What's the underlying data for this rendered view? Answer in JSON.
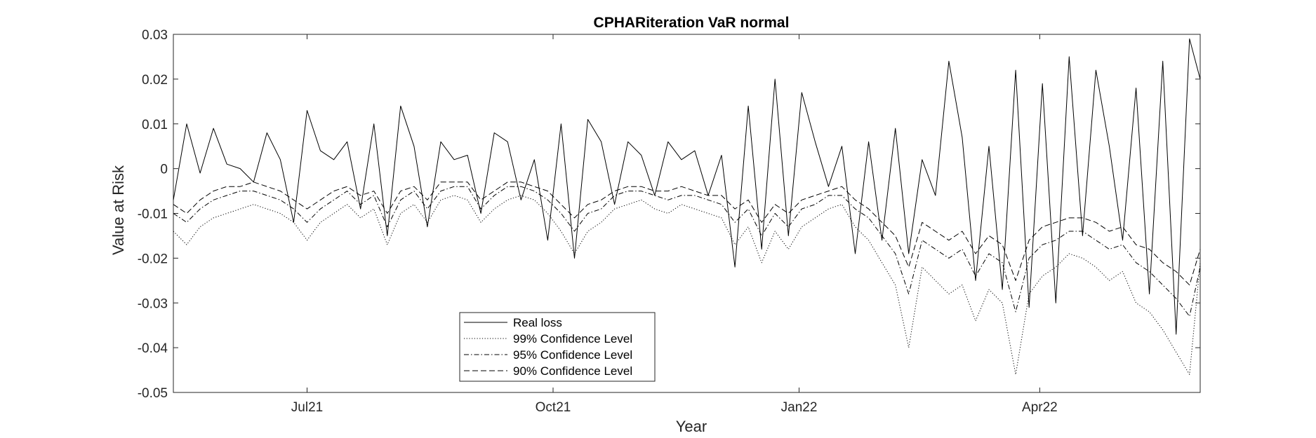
{
  "chart_data": {
    "type": "line",
    "title": "CPHARiteration VaR normal",
    "xlabel": "Year",
    "ylabel": "Value at Risk",
    "ylim": [
      -0.05,
      0.03
    ],
    "yticks": [
      -0.05,
      -0.04,
      -0.03,
      -0.02,
      -0.01,
      0,
      0.01,
      0.02,
      0.03
    ],
    "ytick_labels": [
      "-0.05",
      "-0.04",
      "-0.03",
      "-0.02",
      "-0.01",
      "0",
      "0.01",
      "0.02",
      "0.03"
    ],
    "xlim": [
      "2021-05-12",
      "2022-05-31"
    ],
    "xticks": [
      "2021-07-01",
      "2021-10-01",
      "2022-01-01",
      "2022-04-01"
    ],
    "xtick_labels": [
      "Jul21",
      "Oct21",
      "Jan22",
      "Apr22"
    ],
    "grid": false,
    "legend_position": "bottom-center",
    "x": [
      "2021-05-12",
      "2021-05-17",
      "2021-05-22",
      "2021-05-27",
      "2021-06-01",
      "2021-06-06",
      "2021-06-11",
      "2021-06-16",
      "2021-06-21",
      "2021-06-26",
      "2021-07-01",
      "2021-07-06",
      "2021-07-11",
      "2021-07-16",
      "2021-07-21",
      "2021-07-26",
      "2021-07-31",
      "2021-08-05",
      "2021-08-10",
      "2021-08-15",
      "2021-08-20",
      "2021-08-25",
      "2021-08-30",
      "2021-09-04",
      "2021-09-09",
      "2021-09-14",
      "2021-09-19",
      "2021-09-24",
      "2021-09-29",
      "2021-10-04",
      "2021-10-09",
      "2021-10-14",
      "2021-10-19",
      "2021-10-24",
      "2021-10-29",
      "2021-11-03",
      "2021-11-08",
      "2021-11-13",
      "2021-11-18",
      "2021-11-23",
      "2021-11-28",
      "2021-12-03",
      "2021-12-08",
      "2021-12-13",
      "2021-12-18",
      "2021-12-23",
      "2021-12-28",
      "2022-01-02",
      "2022-01-07",
      "2022-01-12",
      "2022-01-17",
      "2022-01-22",
      "2022-01-27",
      "2022-02-01",
      "2022-02-06",
      "2022-02-11",
      "2022-02-16",
      "2022-02-21",
      "2022-02-26",
      "2022-03-03",
      "2022-03-08",
      "2022-03-13",
      "2022-03-18",
      "2022-03-23",
      "2022-03-28",
      "2022-04-02",
      "2022-04-07",
      "2022-04-12",
      "2022-04-17",
      "2022-04-22",
      "2022-04-27",
      "2022-05-02",
      "2022-05-07",
      "2022-05-12",
      "2022-05-17",
      "2022-05-22",
      "2022-05-27",
      "2022-05-31"
    ],
    "series": [
      {
        "name": "Real loss",
        "style": "solid",
        "values": [
          -0.007,
          0.01,
          -0.001,
          0.009,
          0.001,
          0.0,
          -0.003,
          0.008,
          0.002,
          -0.012,
          0.013,
          0.004,
          0.002,
          0.006,
          -0.009,
          0.01,
          -0.015,
          0.014,
          0.005,
          -0.013,
          0.006,
          0.002,
          0.003,
          -0.01,
          0.008,
          0.006,
          -0.007,
          0.002,
          -0.016,
          0.01,
          -0.02,
          0.011,
          0.006,
          -0.008,
          0.006,
          0.003,
          -0.006,
          0.006,
          0.002,
          0.004,
          -0.006,
          0.003,
          -0.022,
          0.014,
          -0.018,
          0.02,
          -0.015,
          0.017,
          0.006,
          -0.004,
          0.005,
          -0.019,
          0.006,
          -0.016,
          0.009,
          -0.019,
          0.002,
          -0.006,
          0.024,
          0.007,
          -0.025,
          0.005,
          -0.027,
          0.022,
          -0.031,
          0.019,
          -0.03,
          0.025,
          -0.015,
          0.022,
          0.005,
          -0.016,
          0.018,
          -0.028,
          0.024,
          -0.037,
          0.029,
          0.02
        ]
      },
      {
        "name": "99% Confidence Level",
        "style": "dotted",
        "values": [
          -0.014,
          -0.017,
          -0.013,
          -0.011,
          -0.01,
          -0.009,
          -0.008,
          -0.009,
          -0.01,
          -0.012,
          -0.016,
          -0.012,
          -0.01,
          -0.008,
          -0.011,
          -0.009,
          -0.017,
          -0.01,
          -0.008,
          -0.012,
          -0.007,
          -0.006,
          -0.007,
          -0.012,
          -0.009,
          -0.007,
          -0.006,
          -0.007,
          -0.01,
          -0.014,
          -0.019,
          -0.014,
          -0.012,
          -0.009,
          -0.008,
          -0.007,
          -0.009,
          -0.01,
          -0.008,
          -0.009,
          -0.01,
          -0.011,
          -0.017,
          -0.013,
          -0.021,
          -0.014,
          -0.018,
          -0.013,
          -0.011,
          -0.009,
          -0.008,
          -0.013,
          -0.016,
          -0.021,
          -0.026,
          -0.04,
          -0.022,
          -0.025,
          -0.028,
          -0.026,
          -0.034,
          -0.027,
          -0.03,
          -0.046,
          -0.028,
          -0.024,
          -0.022,
          -0.019,
          -0.02,
          -0.022,
          -0.025,
          -0.023,
          -0.03,
          -0.032,
          -0.036,
          -0.041,
          -0.046,
          -0.021
        ]
      },
      {
        "name": "95% Confidence Level",
        "style": "dashdot",
        "values": [
          -0.01,
          -0.012,
          -0.009,
          -0.007,
          -0.006,
          -0.005,
          -0.005,
          -0.006,
          -0.007,
          -0.009,
          -0.012,
          -0.009,
          -0.007,
          -0.005,
          -0.008,
          -0.006,
          -0.013,
          -0.007,
          -0.005,
          -0.009,
          -0.005,
          -0.004,
          -0.004,
          -0.009,
          -0.006,
          -0.004,
          -0.004,
          -0.005,
          -0.007,
          -0.01,
          -0.014,
          -0.01,
          -0.009,
          -0.006,
          -0.005,
          -0.005,
          -0.006,
          -0.007,
          -0.006,
          -0.006,
          -0.007,
          -0.008,
          -0.012,
          -0.009,
          -0.015,
          -0.01,
          -0.013,
          -0.009,
          -0.008,
          -0.006,
          -0.006,
          -0.009,
          -0.011,
          -0.015,
          -0.019,
          -0.028,
          -0.016,
          -0.018,
          -0.02,
          -0.018,
          -0.024,
          -0.019,
          -0.021,
          -0.032,
          -0.02,
          -0.017,
          -0.016,
          -0.014,
          -0.014,
          -0.016,
          -0.018,
          -0.017,
          -0.021,
          -0.023,
          -0.026,
          -0.029,
          -0.033,
          -0.022
        ]
      },
      {
        "name": "90% Confidence Level",
        "style": "dashed",
        "values": [
          -0.008,
          -0.01,
          -0.007,
          -0.005,
          -0.004,
          -0.004,
          -0.003,
          -0.004,
          -0.005,
          -0.007,
          -0.009,
          -0.007,
          -0.005,
          -0.004,
          -0.006,
          -0.005,
          -0.01,
          -0.005,
          -0.004,
          -0.007,
          -0.003,
          -0.003,
          -0.003,
          -0.007,
          -0.005,
          -0.003,
          -0.003,
          -0.004,
          -0.005,
          -0.008,
          -0.011,
          -0.008,
          -0.007,
          -0.005,
          -0.004,
          -0.004,
          -0.005,
          -0.005,
          -0.004,
          -0.005,
          -0.006,
          -0.006,
          -0.009,
          -0.007,
          -0.012,
          -0.008,
          -0.01,
          -0.007,
          -0.006,
          -0.005,
          -0.004,
          -0.007,
          -0.009,
          -0.012,
          -0.015,
          -0.022,
          -0.012,
          -0.014,
          -0.016,
          -0.014,
          -0.019,
          -0.015,
          -0.017,
          -0.025,
          -0.016,
          -0.013,
          -0.012,
          -0.011,
          -0.011,
          -0.012,
          -0.014,
          -0.013,
          -0.017,
          -0.018,
          -0.021,
          -0.023,
          -0.026,
          -0.018
        ]
      }
    ]
  }
}
